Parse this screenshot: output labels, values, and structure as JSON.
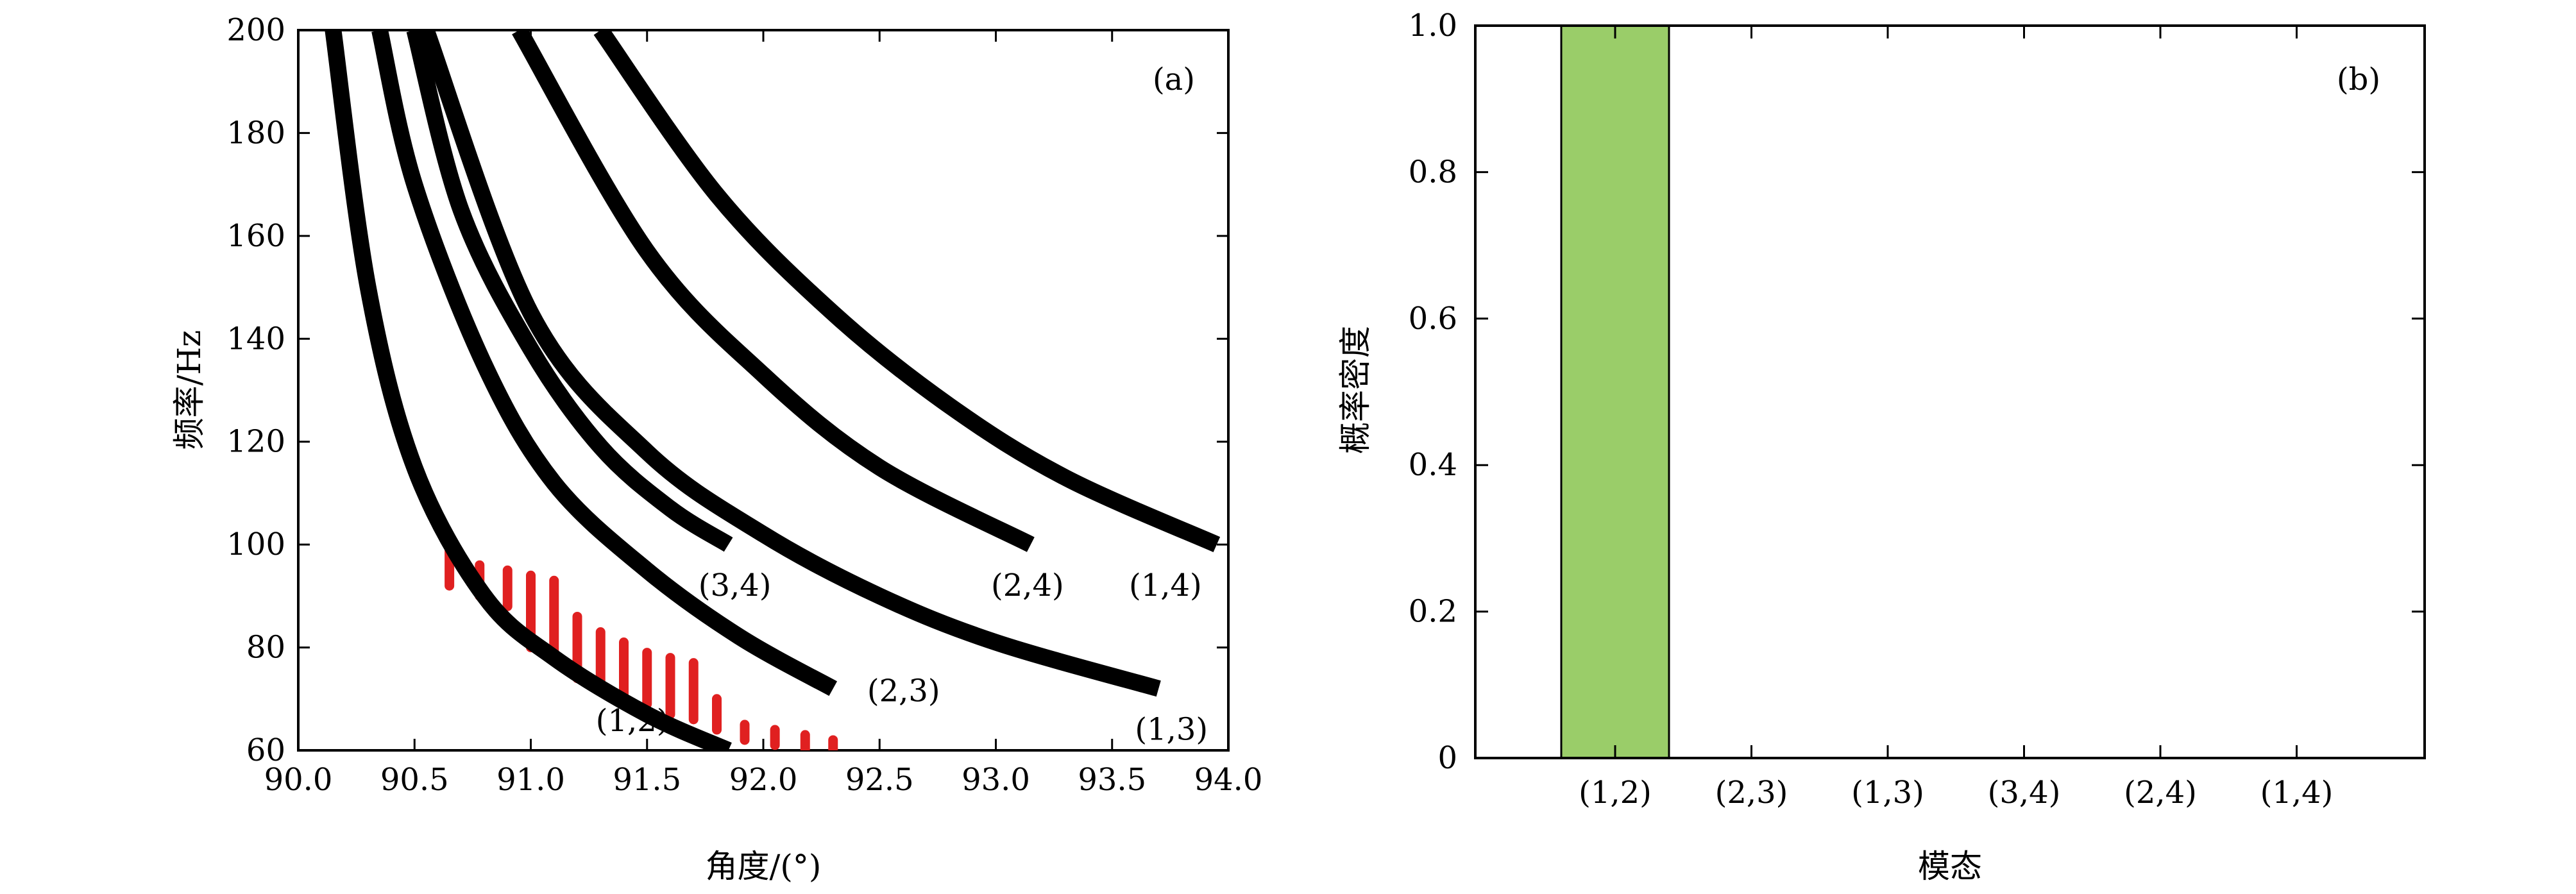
{
  "chart_data": [
    {
      "type": "scatter",
      "panel_tag": "(a)",
      "xlabel": "角度/(°)",
      "ylabel": "频率/Hz",
      "xlim": [
        90.0,
        94.0
      ],
      "ylim": [
        60,
        200
      ],
      "xticks": [
        90.0,
        90.5,
        91.0,
        91.5,
        92.0,
        92.5,
        93.0,
        93.5,
        94.0
      ],
      "yticks": [
        60,
        80,
        100,
        120,
        140,
        160,
        180,
        200
      ],
      "xtick_labels": [
        "90.0",
        "90.5",
        "91.0",
        "91.5",
        "92.0",
        "92.5",
        "93.0",
        "93.5",
        "94.0"
      ],
      "ytick_labels": [
        "60",
        "80",
        "100",
        "120",
        "140",
        "160",
        "180",
        "200"
      ],
      "grid": false,
      "curve_color": "#000000",
      "series": [
        {
          "label": "(1,2)",
          "x": [
            90.15,
            90.3,
            90.5,
            90.8,
            91.1,
            91.5,
            91.85
          ],
          "y": [
            200,
            150,
            115,
            90,
            78,
            67,
            60
          ]
        },
        {
          "label": "(2,3)",
          "x": [
            90.35,
            90.5,
            90.8,
            91.1,
            91.5,
            91.9,
            92.3
          ],
          "y": [
            200,
            170,
            135,
            112,
            95,
            82,
            72
          ]
        },
        {
          "label": "(1,3)",
          "x": [
            90.55,
            91.0,
            91.5,
            92.0,
            92.5,
            93.0,
            93.7
          ],
          "y": [
            200,
            145,
            118,
            102,
            90,
            81,
            72
          ]
        },
        {
          "label": "(3,4)",
          "x": [
            90.5,
            90.7,
            91.0,
            91.3,
            91.6,
            91.85
          ],
          "y": [
            200,
            165,
            138,
            119,
            107,
            100
          ]
        },
        {
          "label": "(2,4)",
          "x": [
            90.95,
            91.5,
            92.0,
            92.5,
            93.15
          ],
          "y": [
            200,
            157,
            133,
            115,
            100
          ]
        },
        {
          "label": "(1,4)",
          "x": [
            91.3,
            91.8,
            92.3,
            92.8,
            93.3,
            93.95
          ],
          "y": [
            200,
            168,
            145,
            127,
            113,
            100
          ]
        }
      ],
      "red_bars": {
        "color": "#e02020",
        "bars": [
          {
            "x": 90.65,
            "y0": 92,
            "y1": 101
          },
          {
            "x": 90.78,
            "y0": 90,
            "y1": 96
          },
          {
            "x": 90.9,
            "y0": 88,
            "y1": 95
          },
          {
            "x": 91.0,
            "y0": 80,
            "y1": 94
          },
          {
            "x": 91.1,
            "y0": 78,
            "y1": 93
          },
          {
            "x": 91.2,
            "y0": 74,
            "y1": 86
          },
          {
            "x": 91.3,
            "y0": 73,
            "y1": 83
          },
          {
            "x": 91.4,
            "y0": 71,
            "y1": 81
          },
          {
            "x": 91.5,
            "y0": 69,
            "y1": 79
          },
          {
            "x": 91.6,
            "y0": 67,
            "y1": 78
          },
          {
            "x": 91.7,
            "y0": 66,
            "y1": 77
          },
          {
            "x": 91.8,
            "y0": 64,
            "y1": 70
          },
          {
            "x": 91.92,
            "y0": 62,
            "y1": 65
          },
          {
            "x": 92.05,
            "y0": 61,
            "y1": 64
          },
          {
            "x": 92.18,
            "y0": 60,
            "y1": 63
          },
          {
            "x": 92.3,
            "y0": 60,
            "y1": 62
          }
        ]
      }
    },
    {
      "type": "bar",
      "panel_tag": "(b)",
      "xlabel": "模态",
      "ylabel": "概率密度",
      "categories": [
        "(1,2)",
        "(2,3)",
        "(1,3)",
        "(3,4)",
        "(2,4)",
        "(1,4)"
      ],
      "values": [
        1.0,
        0,
        0,
        0,
        0,
        0
      ],
      "ylim": [
        0,
        1.0
      ],
      "yticks": [
        0,
        0.2,
        0.4,
        0.6,
        0.8,
        1.0
      ],
      "ytick_labels": [
        "0",
        "0.2",
        "0.4",
        "0.6",
        "0.8",
        "1.0"
      ],
      "bar_color": "#9acd69",
      "grid": false
    }
  ]
}
